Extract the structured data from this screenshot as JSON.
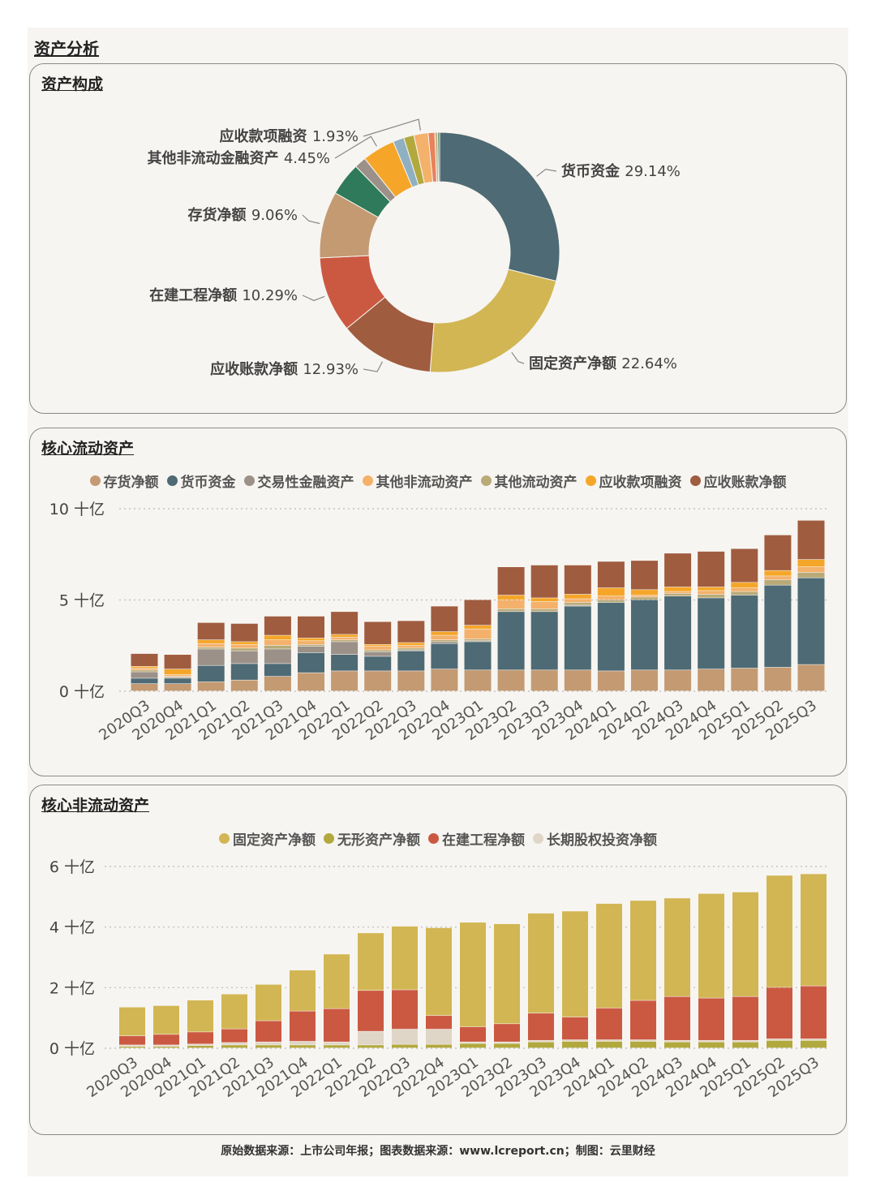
{
  "page": {
    "title": "资产分析",
    "footer": "原始数据来源：上市公司年报；图表数据来源：www.lcreport.cn；制图：云里财经"
  },
  "colors": {
    "存货净额": "#c49a72",
    "货币资金": "#4e6a74",
    "交易性金融资产": "#9b9189",
    "其他非流动资产": "#f4b16b",
    "其他流动资产": "#b9aa78",
    "应收款项融资": "#f5a629",
    "应收账款净额": "#a05c3f",
    "固定资产净额": "#d2b654",
    "无形资产净额": "#b2a93e",
    "在建工程净额": "#cb5942",
    "长期股权投资净额": "#e0d6c8"
  },
  "chart_data": [
    {
      "type": "pie",
      "title": "资产构成",
      "slices": [
        {
          "label": "货币资金",
          "value": 29.14,
          "text": "29.14%",
          "color": "#4e6a74",
          "show_label": true
        },
        {
          "label": "固定资产净额",
          "value": 22.64,
          "text": "22.64%",
          "color": "#d2b654",
          "show_label": true
        },
        {
          "label": "应收账款净额",
          "value": 12.93,
          "text": "12.93%",
          "color": "#a05c3f",
          "show_label": true
        },
        {
          "label": "在建工程净额",
          "value": 10.29,
          "text": "10.29%",
          "color": "#cb5942",
          "show_label": true
        },
        {
          "label": "存货净额",
          "value": 9.06,
          "text": "9.06%",
          "color": "#c49a72",
          "show_label": true
        },
        {
          "label": "",
          "value": 4.5,
          "text": "",
          "color": "#2e7a5a",
          "show_label": false
        },
        {
          "label": "",
          "value": 1.6,
          "text": "",
          "color": "#9b9189",
          "show_label": false
        },
        {
          "label": "其他非流动金融资产",
          "value": 4.45,
          "text": "4.45%",
          "color": "#f5a629",
          "show_label": true
        },
        {
          "label": "",
          "value": 1.5,
          "text": "",
          "color": "#8fb0c0",
          "show_label": false
        },
        {
          "label": "",
          "value": 1.4,
          "text": "",
          "color": "#b2a93e",
          "show_label": false
        },
        {
          "label": "应收款项融资",
          "value": 1.93,
          "text": "1.93%",
          "color": "#f4b16b",
          "show_label": true
        },
        {
          "label": "",
          "value": 0.9,
          "text": "",
          "color": "#e8825a",
          "show_label": false
        },
        {
          "label": "",
          "value": 0.4,
          "text": "",
          "color": "#c9b48a",
          "show_label": false
        },
        {
          "label": "",
          "value": 0.25,
          "text": "",
          "color": "#3b7a50",
          "show_label": false
        }
      ]
    },
    {
      "type": "bar",
      "stacked": true,
      "title": "核心流动资产",
      "unit": "十亿",
      "ylim": [
        0,
        10
      ],
      "yticks": [
        0,
        5,
        10
      ],
      "ytick_labels": [
        "0 十亿",
        "5 十亿",
        "10 十亿"
      ],
      "categories": [
        "2020Q3",
        "2020Q4",
        "2021Q1",
        "2021Q2",
        "2021Q3",
        "2021Q4",
        "2022Q1",
        "2022Q2",
        "2022Q3",
        "2022Q4",
        "2023Q1",
        "2023Q2",
        "2023Q3",
        "2023Q4",
        "2024Q1",
        "2024Q2",
        "2024Q3",
        "2024Q4",
        "2025Q1",
        "2025Q2",
        "2025Q3"
      ],
      "legend": [
        "存货净额",
        "货币资金",
        "交易性金融资产",
        "其他非流动资产",
        "其他流动资产",
        "应收款项融资",
        "应收账款净额"
      ],
      "stack_order": [
        "存货净额",
        "货币资金",
        "交易性金融资产",
        "其他流动资产",
        "其他非流动资产",
        "应收款项融资",
        "应收账款净额"
      ],
      "series": [
        {
          "name": "存货净额",
          "values": [
            0.4,
            0.4,
            0.5,
            0.6,
            0.8,
            1.0,
            1.1,
            1.1,
            1.1,
            1.2,
            1.15,
            1.15,
            1.15,
            1.15,
            1.1,
            1.15,
            1.15,
            1.2,
            1.25,
            1.3,
            1.45
          ]
        },
        {
          "name": "货币资金",
          "values": [
            0.3,
            0.3,
            0.9,
            0.9,
            0.7,
            1.1,
            0.9,
            0.8,
            1.1,
            1.4,
            1.55,
            3.2,
            3.2,
            3.5,
            3.75,
            3.85,
            4.05,
            3.9,
            4.0,
            4.5,
            4.75
          ]
        },
        {
          "name": "交易性金融资产",
          "values": [
            0.35,
            0.05,
            0.9,
            0.7,
            0.8,
            0.35,
            0.7,
            0.25,
            0.05,
            0.1,
            0.05,
            0.0,
            0.0,
            0.05,
            0.0,
            0.0,
            0.0,
            0.0,
            0.0,
            0.0,
            0.0
          ]
        },
        {
          "name": "其他流动资产",
          "values": [
            0.1,
            0.05,
            0.1,
            0.15,
            0.2,
            0.1,
            0.1,
            0.1,
            0.1,
            0.1,
            0.1,
            0.15,
            0.15,
            0.15,
            0.15,
            0.15,
            0.15,
            0.2,
            0.2,
            0.3,
            0.3
          ]
        },
        {
          "name": "其他非流动资产",
          "values": [
            0.1,
            0.1,
            0.2,
            0.2,
            0.3,
            0.2,
            0.15,
            0.2,
            0.15,
            0.25,
            0.55,
            0.5,
            0.4,
            0.2,
            0.2,
            0.1,
            0.1,
            0.2,
            0.2,
            0.2,
            0.3
          ]
        },
        {
          "name": "应收款项融资",
          "values": [
            0.1,
            0.3,
            0.2,
            0.15,
            0.25,
            0.15,
            0.15,
            0.1,
            0.15,
            0.2,
            0.2,
            0.25,
            0.2,
            0.25,
            0.45,
            0.3,
            0.25,
            0.2,
            0.3,
            0.3,
            0.4
          ]
        },
        {
          "name": "应收账款净额",
          "values": [
            0.7,
            0.8,
            0.95,
            1.0,
            1.05,
            1.2,
            1.25,
            1.25,
            1.2,
            1.4,
            1.4,
            1.55,
            1.8,
            1.6,
            1.45,
            1.6,
            1.85,
            1.95,
            1.85,
            1.95,
            2.15
          ]
        }
      ]
    },
    {
      "type": "bar",
      "stacked": true,
      "title": "核心非流动资产",
      "unit": "十亿",
      "ylim": [
        0,
        6
      ],
      "yticks": [
        0,
        2,
        4,
        6
      ],
      "ytick_labels": [
        "0 十亿",
        "2 十亿",
        "4 十亿",
        "6 十亿"
      ],
      "categories": [
        "2020Q3",
        "2020Q4",
        "2021Q1",
        "2021Q2",
        "2021Q3",
        "2021Q4",
        "2022Q1",
        "2022Q2",
        "2022Q3",
        "2022Q4",
        "2023Q1",
        "2023Q2",
        "2023Q3",
        "2023Q4",
        "2024Q1",
        "2024Q2",
        "2024Q3",
        "2024Q4",
        "2025Q1",
        "2025Q2",
        "2025Q3"
      ],
      "legend": [
        "固定资产净额",
        "无形资产净额",
        "在建工程净额",
        "长期股权投资净额"
      ],
      "stack_order": [
        "无形资产净额",
        "长期股权投资净额",
        "在建工程净额",
        "固定资产净额"
      ],
      "series": [
        {
          "name": "固定资产净额",
          "values": [
            0.95,
            0.95,
            1.05,
            1.15,
            1.2,
            1.35,
            1.8,
            1.9,
            2.1,
            2.9,
            3.45,
            3.3,
            3.3,
            3.5,
            3.45,
            3.3,
            3.25,
            3.45,
            3.45,
            3.7,
            3.7
          ]
        },
        {
          "name": "无形资产净额",
          "values": [
            0.05,
            0.05,
            0.08,
            0.1,
            0.1,
            0.1,
            0.1,
            0.1,
            0.12,
            0.12,
            0.15,
            0.15,
            0.2,
            0.22,
            0.22,
            0.22,
            0.2,
            0.2,
            0.2,
            0.25,
            0.25
          ]
        },
        {
          "name": "在建工程净额",
          "values": [
            0.3,
            0.35,
            0.4,
            0.45,
            0.7,
            1.0,
            1.1,
            1.35,
            1.3,
            0.45,
            0.5,
            0.6,
            0.9,
            0.75,
            1.05,
            1.3,
            1.45,
            1.4,
            1.45,
            1.7,
            1.75
          ]
        },
        {
          "name": "长期股权投资净额",
          "values": [
            0.05,
            0.05,
            0.05,
            0.08,
            0.1,
            0.12,
            0.1,
            0.45,
            0.5,
            0.5,
            0.05,
            0.05,
            0.05,
            0.05,
            0.05,
            0.05,
            0.05,
            0.05,
            0.05,
            0.05,
            0.05
          ]
        }
      ]
    }
  ]
}
